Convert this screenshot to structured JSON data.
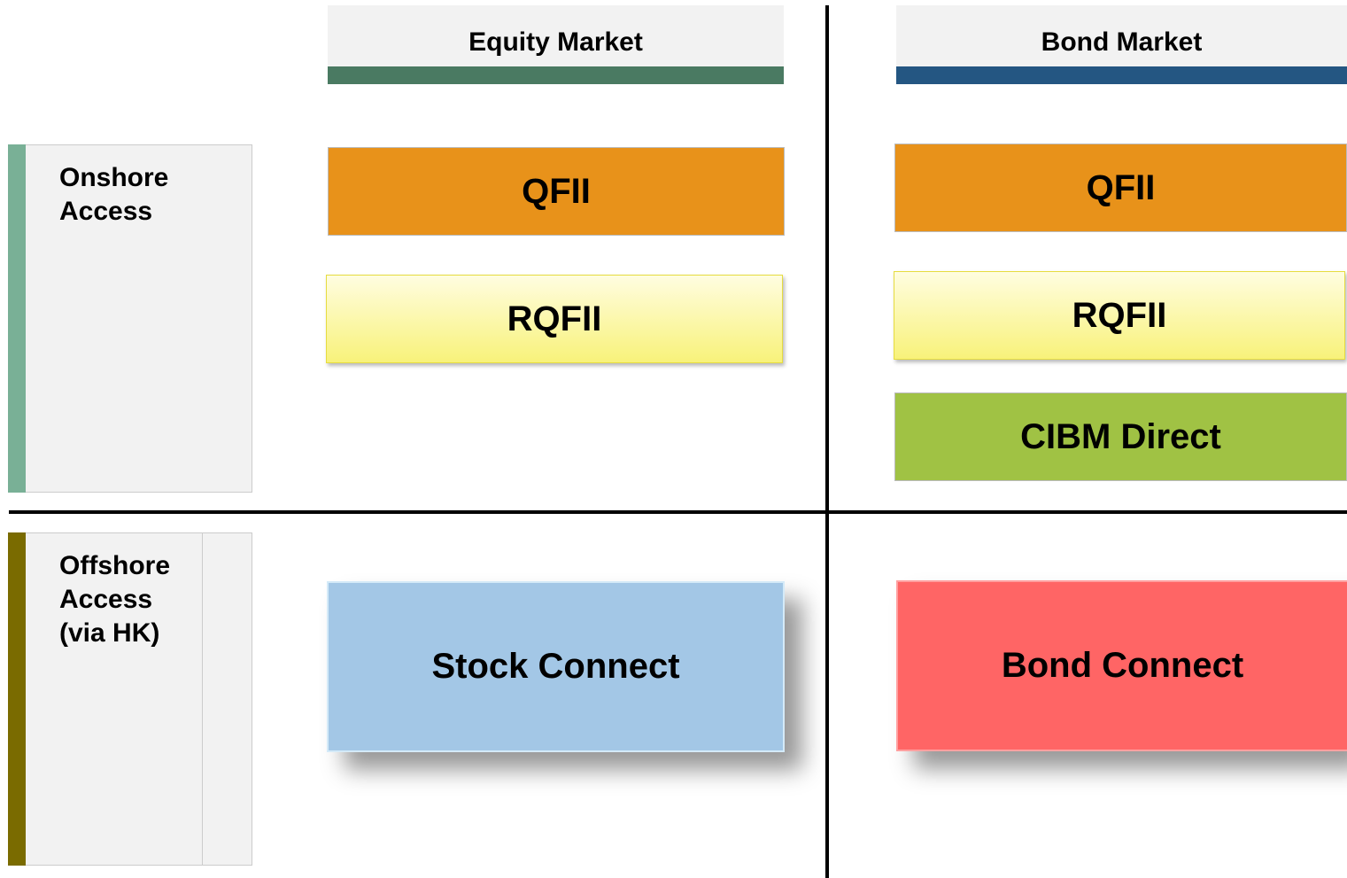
{
  "columns": [
    {
      "title": "Equity Market"
    },
    {
      "title": "Bond Market"
    }
  ],
  "rows": [
    {
      "label": "Onshore Access"
    },
    {
      "label": "Offshore Access (via HK)"
    }
  ],
  "boxes": [
    {
      "label": "QFII"
    },
    {
      "label": "RQFII"
    },
    {
      "label": "QFII"
    },
    {
      "label": "RQFII"
    },
    {
      "label": "CIBM Direct"
    },
    {
      "label": "Stock Connect"
    },
    {
      "label": "Bond Connect"
    }
  ]
}
